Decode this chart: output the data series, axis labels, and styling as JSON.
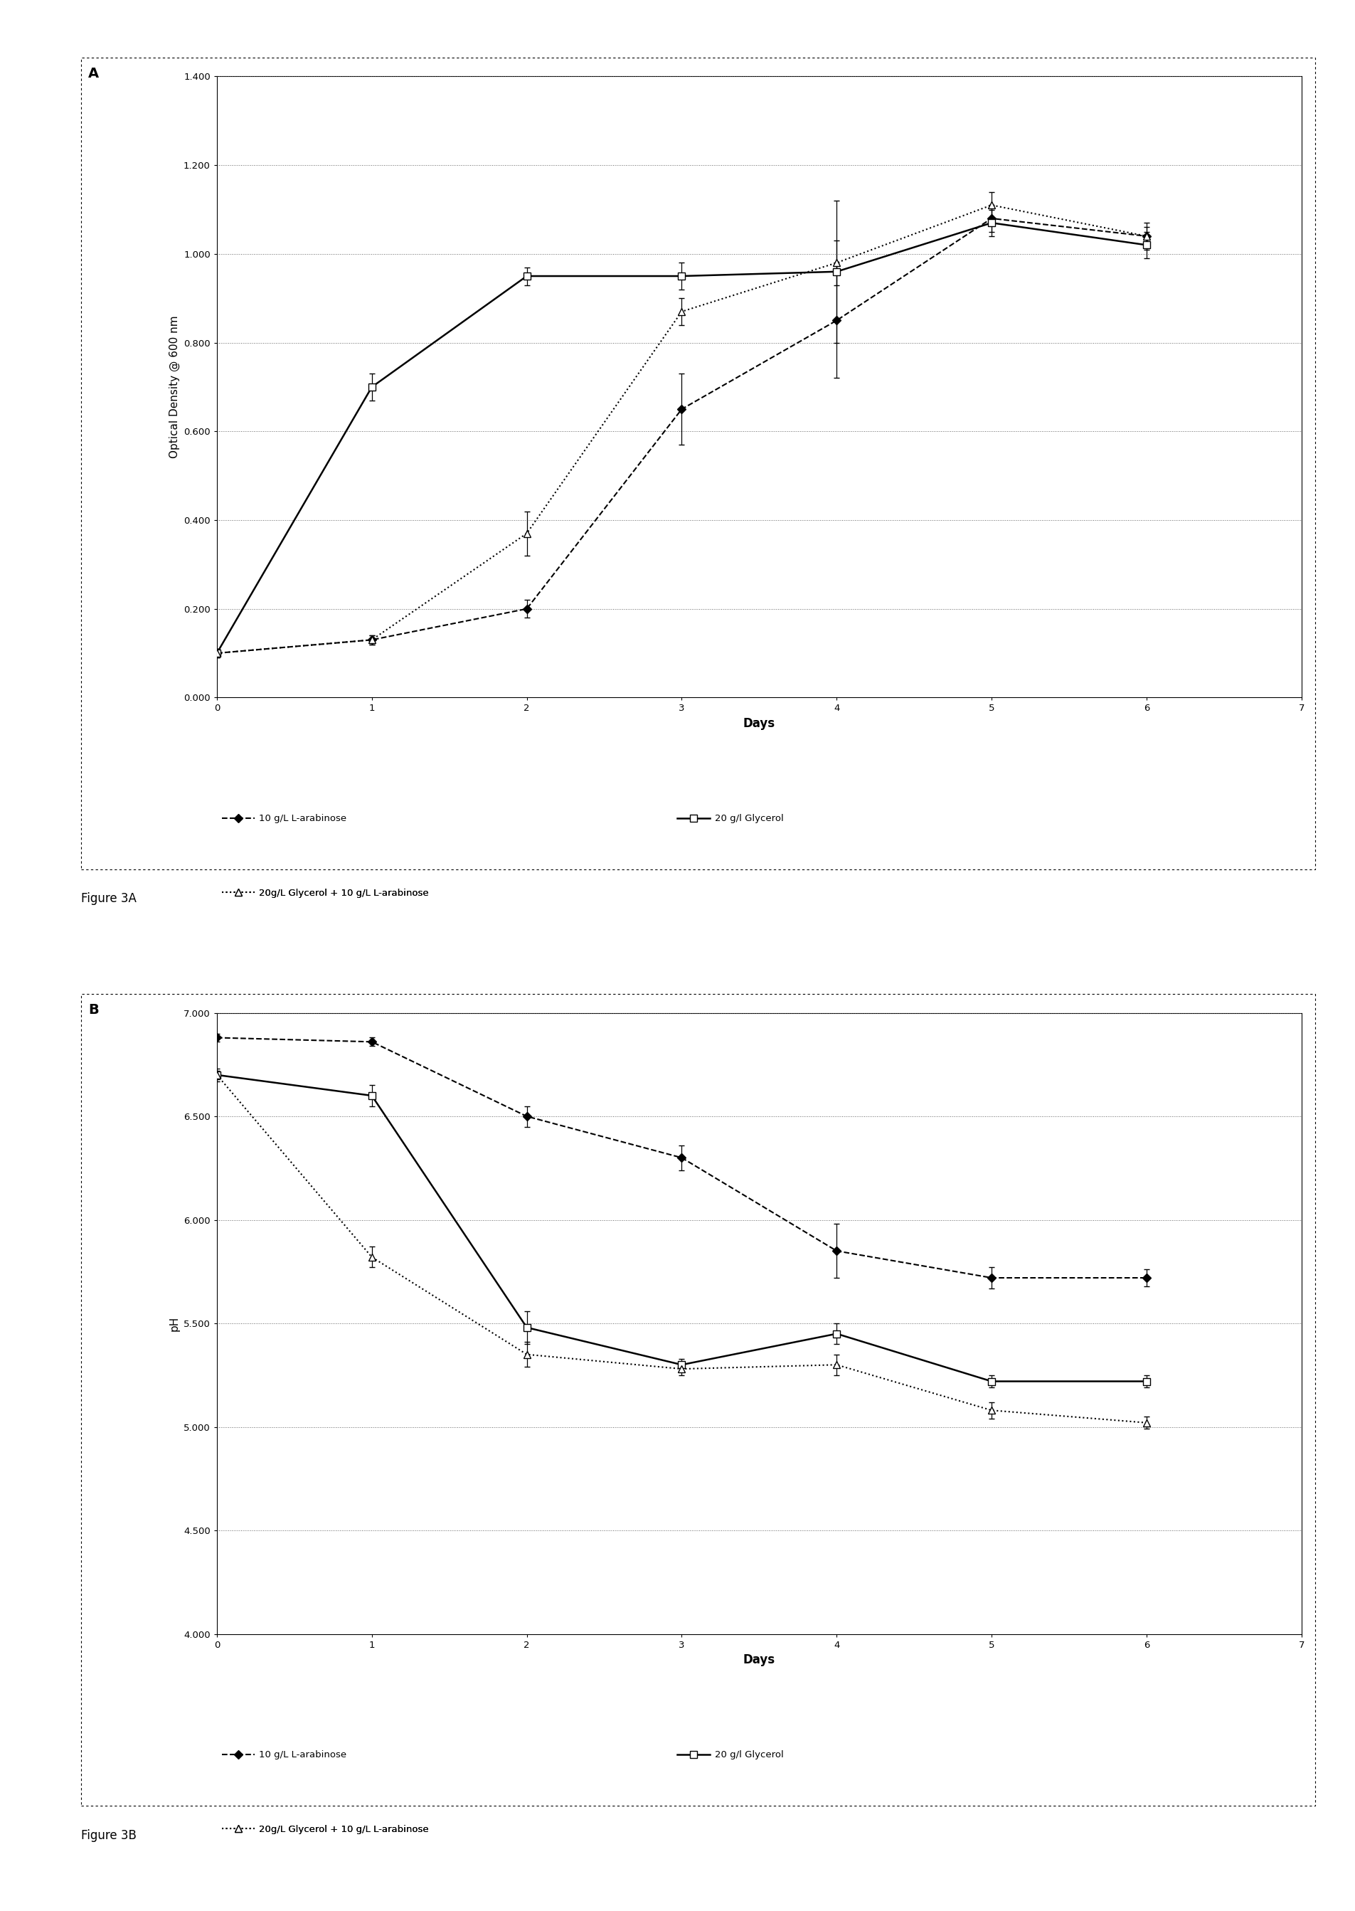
{
  "fig_width": 19.06,
  "fig_height": 26.86,
  "background_color": "#ffffff",
  "panel_A": {
    "label": "A",
    "xlabel": "Days",
    "ylabel": "Optical Density @ 600 nm",
    "xlim": [
      0,
      7
    ],
    "ylim": [
      0.0,
      1.4
    ],
    "ylim_plot": [
      -0.05,
      1.45
    ],
    "yticks": [
      0.0,
      0.2,
      0.4,
      0.6,
      0.8,
      1.0,
      1.2,
      1.4
    ],
    "xticks": [
      0,
      1,
      2,
      3,
      4,
      5,
      6,
      7
    ],
    "series": {
      "arabinose": {
        "label": "10 g/L L-arabinose",
        "x": [
          0,
          1,
          2,
          3,
          4,
          5,
          6
        ],
        "y": [
          0.1,
          0.13,
          0.2,
          0.65,
          0.85,
          1.08,
          1.04
        ],
        "yerr": [
          0.01,
          0.01,
          0.02,
          0.08,
          0.13,
          0.03,
          0.03
        ],
        "linestyle": "--",
        "marker": "D",
        "markerfacecolor": "black",
        "linewidth": 1.5,
        "markersize": 6
      },
      "glycerol": {
        "label": "20 g/l Glycerol",
        "x": [
          0,
          1,
          2,
          3,
          4,
          5,
          6
        ],
        "y": [
          0.1,
          0.7,
          0.95,
          0.95,
          0.96,
          1.07,
          1.02
        ],
        "yerr": [
          0.01,
          0.03,
          0.02,
          0.03,
          0.16,
          0.03,
          0.03
        ],
        "linestyle": "-",
        "marker": "s",
        "markerfacecolor": "white",
        "linewidth": 1.8,
        "markersize": 7
      },
      "glycerol_arabinose": {
        "label": "20g/L Glycerol + 10 g/L L-arabinose",
        "x": [
          0,
          1,
          2,
          3,
          4,
          5,
          6
        ],
        "y": [
          0.1,
          0.13,
          0.37,
          0.87,
          0.98,
          1.11,
          1.04
        ],
        "yerr": [
          0.01,
          0.01,
          0.05,
          0.03,
          0.05,
          0.03,
          0.02
        ],
        "linestyle": ":",
        "marker": "^",
        "markerfacecolor": "white",
        "linewidth": 1.5,
        "markersize": 7
      }
    }
  },
  "panel_B": {
    "label": "B",
    "xlabel": "Days",
    "ylabel": "pH",
    "xlim": [
      0,
      7
    ],
    "ylim": [
      4.0,
      7.0
    ],
    "yticks": [
      4.0,
      4.5,
      5.0,
      5.5,
      6.0,
      6.5,
      7.0
    ],
    "xticks": [
      0,
      1,
      2,
      3,
      4,
      5,
      6,
      7
    ],
    "series": {
      "arabinose": {
        "label": "10 g/L L-arabinose",
        "x": [
          0,
          1,
          2,
          3,
          4,
          5,
          6
        ],
        "y": [
          6.88,
          6.86,
          6.5,
          6.3,
          5.85,
          5.72,
          5.72
        ],
        "yerr": [
          0.02,
          0.02,
          0.05,
          0.06,
          0.13,
          0.05,
          0.04
        ],
        "linestyle": "--",
        "marker": "D",
        "markerfacecolor": "black",
        "linewidth": 1.5,
        "markersize": 6
      },
      "glycerol": {
        "label": "20 g/l Glycerol",
        "x": [
          0,
          1,
          2,
          3,
          4,
          5,
          6
        ],
        "y": [
          6.7,
          6.6,
          5.48,
          5.3,
          5.45,
          5.22,
          5.22
        ],
        "yerr": [
          0.02,
          0.05,
          0.08,
          0.03,
          0.05,
          0.03,
          0.03
        ],
        "linestyle": "-",
        "marker": "s",
        "markerfacecolor": "white",
        "linewidth": 1.8,
        "markersize": 7
      },
      "glycerol_arabinose": {
        "label": "20g/L Glycerol + 10 g/L L-arabinose",
        "x": [
          0,
          1,
          2,
          3,
          4,
          5,
          6
        ],
        "y": [
          6.7,
          5.82,
          5.35,
          5.28,
          5.3,
          5.08,
          5.02
        ],
        "yerr": [
          0.03,
          0.05,
          0.06,
          0.03,
          0.05,
          0.04,
          0.03
        ],
        "linestyle": ":",
        "marker": "^",
        "markerfacecolor": "white",
        "linewidth": 1.5,
        "markersize": 7
      }
    }
  },
  "figure_labels": {
    "A_caption": "Figure 3A",
    "B_caption": "Figure 3B"
  }
}
